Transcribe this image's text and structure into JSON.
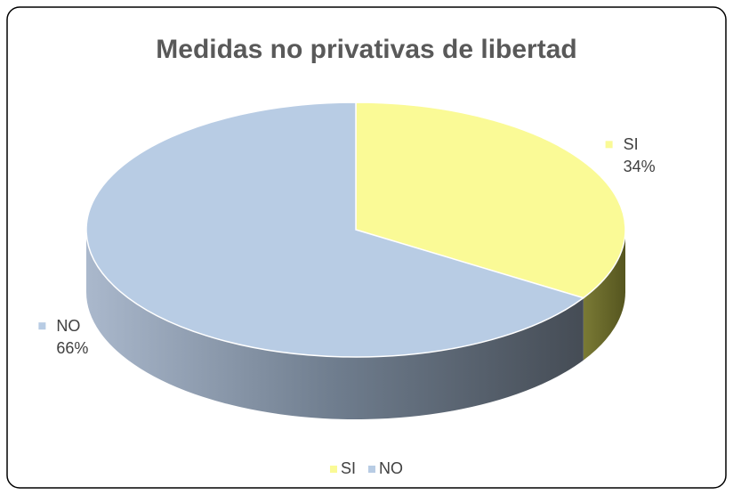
{
  "chart_data": {
    "type": "pie",
    "title": "Medidas no privativas de libertad",
    "categories": [
      "SI",
      "NO"
    ],
    "values": [
      34,
      66
    ],
    "value_labels": [
      "34%",
      "66%"
    ],
    "colors": [
      "#fafa96",
      "#b8cce4"
    ],
    "legend": "bottom"
  }
}
